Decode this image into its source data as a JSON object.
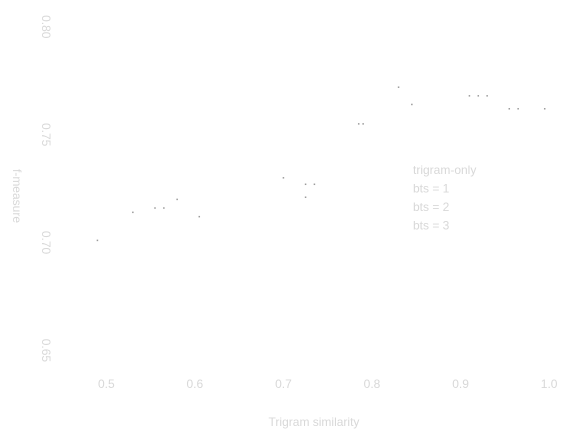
{
  "chart_data": {
    "type": "scatter",
    "title": "",
    "xlabel": "Trigram similarity",
    "ylabel": "f-measure",
    "xlim": [
      0.45,
      1.01
    ],
    "ylim": [
      0.64,
      0.805
    ],
    "x_ticks": [
      {
        "value": 0.5,
        "label": "0.5"
      },
      {
        "value": 0.6,
        "label": "0.6"
      },
      {
        "value": 0.7,
        "label": "0.7"
      },
      {
        "value": 0.8,
        "label": "0.8"
      },
      {
        "value": 0.9,
        "label": "0.9"
      },
      {
        "value": 1.0,
        "label": "1.0"
      }
    ],
    "y_ticks": [
      {
        "value": 0.65,
        "label": "0.65"
      },
      {
        "value": 0.7,
        "label": "0.70"
      },
      {
        "value": 0.75,
        "label": "0.75"
      },
      {
        "value": 0.8,
        "label": "0.80"
      }
    ],
    "legend": {
      "position": "right",
      "entries": [
        "trigram-only",
        "bts = 1",
        "bts = 2",
        "bts = 3"
      ]
    },
    "series": [
      {
        "points": [
          {
            "x": 0.49,
            "y": 0.701
          },
          {
            "x": 0.53,
            "y": 0.714
          },
          {
            "x": 0.555,
            "y": 0.716
          },
          {
            "x": 0.565,
            "y": 0.716
          },
          {
            "x": 0.58,
            "y": 0.72
          },
          {
            "x": 0.605,
            "y": 0.712
          },
          {
            "x": 0.7,
            "y": 0.73
          },
          {
            "x": 0.725,
            "y": 0.721
          },
          {
            "x": 0.725,
            "y": 0.727
          },
          {
            "x": 0.735,
            "y": 0.727
          },
          {
            "x": 0.785,
            "y": 0.755
          },
          {
            "x": 0.79,
            "y": 0.755
          },
          {
            "x": 0.83,
            "y": 0.772
          },
          {
            "x": 0.845,
            "y": 0.764
          },
          {
            "x": 0.91,
            "y": 0.768
          },
          {
            "x": 0.92,
            "y": 0.768
          },
          {
            "x": 0.93,
            "y": 0.768
          },
          {
            "x": 0.955,
            "y": 0.762
          },
          {
            "x": 0.965,
            "y": 0.762
          },
          {
            "x": 0.995,
            "y": 0.762
          }
        ]
      }
    ]
  }
}
